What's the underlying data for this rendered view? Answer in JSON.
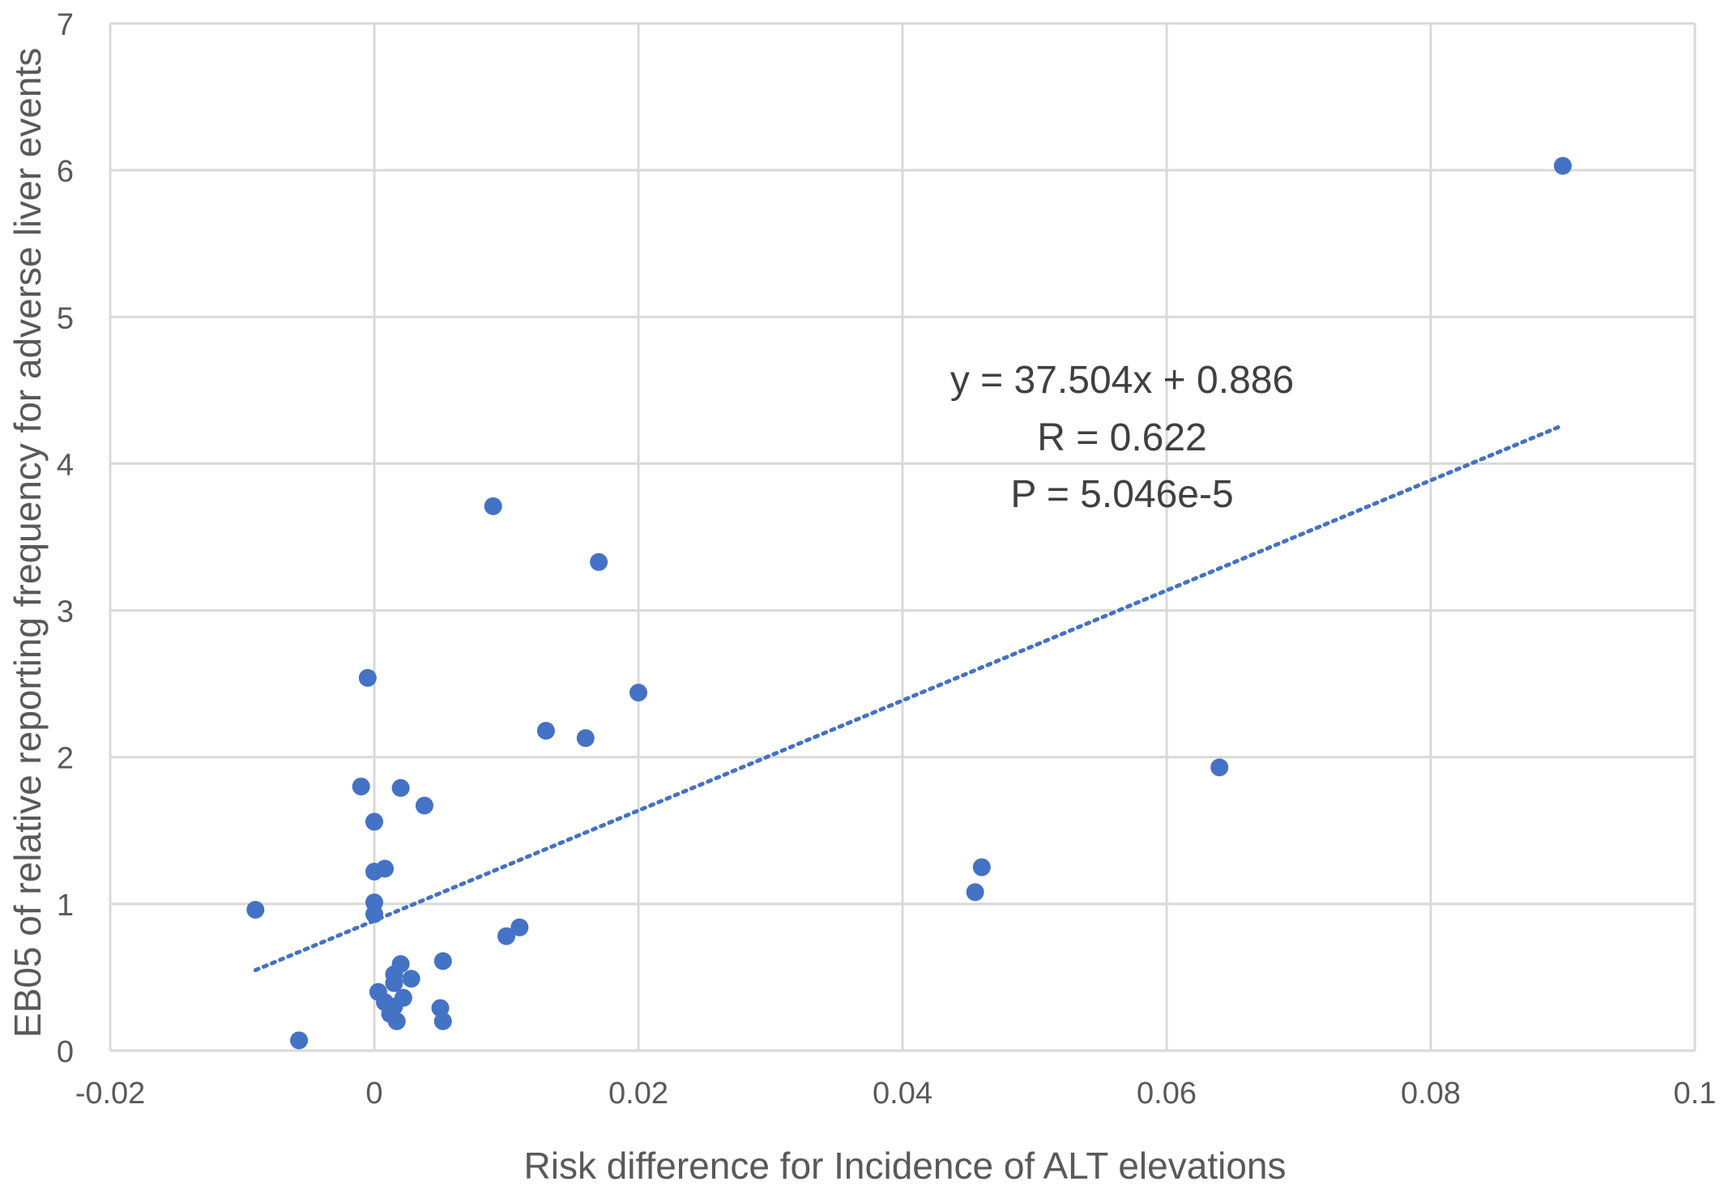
{
  "chart_data": {
    "type": "scatter",
    "title": "",
    "xlabel": "Risk difference for Incidence of ALT elevations",
    "ylabel": "EB05 of relative reporting frequency  for adverse liver events",
    "xlim": [
      -0.02,
      0.1
    ],
    "ylim": [
      0,
      7
    ],
    "xticks": [
      -0.02,
      0,
      0.02,
      0.04,
      0.06,
      0.08,
      0.1
    ],
    "yticks": [
      0,
      1,
      2,
      3,
      4,
      5,
      6,
      7
    ],
    "xtick_labels": [
      "-0.02",
      "0",
      "0.02",
      "0.04",
      "0.06",
      "0.08",
      "0.1"
    ],
    "ytick_labels": [
      "0",
      "1",
      "2",
      "3",
      "4",
      "5",
      "6",
      "7"
    ],
    "grid": true,
    "legend": "none",
    "marker_color": "#4472c4",
    "trendline_color": "#4472c4",
    "points": [
      {
        "x": 0.09,
        "y": 6.03
      },
      {
        "x": 0.009,
        "y": 3.71
      },
      {
        "x": 0.017,
        "y": 3.33
      },
      {
        "x": -0.0005,
        "y": 2.54
      },
      {
        "x": 0.02,
        "y": 2.44
      },
      {
        "x": 0.013,
        "y": 2.18
      },
      {
        "x": 0.016,
        "y": 2.13
      },
      {
        "x": 0.064,
        "y": 1.93
      },
      {
        "x": -0.001,
        "y": 1.8
      },
      {
        "x": 0.002,
        "y": 1.79
      },
      {
        "x": 0.0038,
        "y": 1.67
      },
      {
        "x": 0.0,
        "y": 1.56
      },
      {
        "x": 0.046,
        "y": 1.25
      },
      {
        "x": 0.0008,
        "y": 1.24
      },
      {
        "x": 0.0,
        "y": 1.22
      },
      {
        "x": 0.0455,
        "y": 1.08
      },
      {
        "x": 0.0,
        "y": 1.01
      },
      {
        "x": -0.009,
        "y": 0.96
      },
      {
        "x": 0.0,
        "y": 0.93
      },
      {
        "x": 0.011,
        "y": 0.84
      },
      {
        "x": 0.01,
        "y": 0.78
      },
      {
        "x": 0.0052,
        "y": 0.61
      },
      {
        "x": 0.002,
        "y": 0.59
      },
      {
        "x": 0.0015,
        "y": 0.52
      },
      {
        "x": 0.0028,
        "y": 0.49
      },
      {
        "x": 0.0015,
        "y": 0.46
      },
      {
        "x": 0.0003,
        "y": 0.4
      },
      {
        "x": 0.0022,
        "y": 0.36
      },
      {
        "x": 0.0008,
        "y": 0.33
      },
      {
        "x": 0.0015,
        "y": 0.3
      },
      {
        "x": 0.005,
        "y": 0.29
      },
      {
        "x": 0.0012,
        "y": 0.25
      },
      {
        "x": 0.0017,
        "y": 0.2
      },
      {
        "x": 0.0052,
        "y": 0.2
      },
      {
        "x": -0.0057,
        "y": 0.07
      }
    ],
    "trendline": {
      "slope": 37.504,
      "intercept": 0.886,
      "x_range": [
        -0.009,
        0.09
      ]
    },
    "annotations": [
      "y = 37.504x + 0.886",
      "R = 0.622",
      "P = 5.046e-5"
    ]
  }
}
